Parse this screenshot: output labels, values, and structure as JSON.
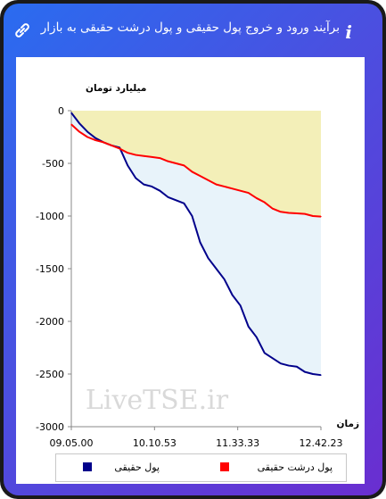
{
  "header": {
    "title": "برآیند ورود و خروج پول حقیقی و پول درشت حقیقی به بازار",
    "info_glyph": "i",
    "link_icon": "link-icon"
  },
  "chart_data": {
    "type": "line",
    "ylabel": "میلیارد تومان",
    "xlabel": "زمان",
    "ylim": [
      -3000,
      0
    ],
    "y_ticks": [
      "0",
      "-500",
      "-1000",
      "-1500",
      "-2000",
      "-2500",
      "-3000"
    ],
    "x_ticks": [
      "09.05.00",
      "10.10.53",
      "11.33.33",
      "12.42.23"
    ],
    "grid": false,
    "legend_position": "bottom",
    "watermark": "LiveTSE.ir",
    "series": [
      {
        "name": "پول حقیقی",
        "color": "#00008b",
        "values": [
          -20,
          -120,
          -200,
          -260,
          -300,
          -330,
          -350,
          -520,
          -640,
          -700,
          -720,
          -760,
          -820,
          -850,
          -880,
          -1000,
          -1250,
          -1400,
          -1500,
          -1600,
          -1750,
          -1850,
          -2050,
          -2150,
          -2300,
          -2350,
          -2400,
          -2420,
          -2430,
          -2480,
          -2500,
          -2510
        ]
      },
      {
        "name": "پول درشت حقیقی",
        "color": "#ff0000",
        "values": [
          -130,
          -200,
          -250,
          -280,
          -300,
          -330,
          -360,
          -400,
          -420,
          -430,
          -440,
          -450,
          -480,
          -500,
          -520,
          -580,
          -620,
          -660,
          -700,
          -720,
          -740,
          -760,
          -780,
          -830,
          -870,
          -930,
          -960,
          -970,
          -975,
          -980,
          -1000,
          -1005
        ]
      }
    ],
    "fill_colors": {
      "upper": "#f3efb8",
      "lower": "#e8f3fa"
    }
  }
}
